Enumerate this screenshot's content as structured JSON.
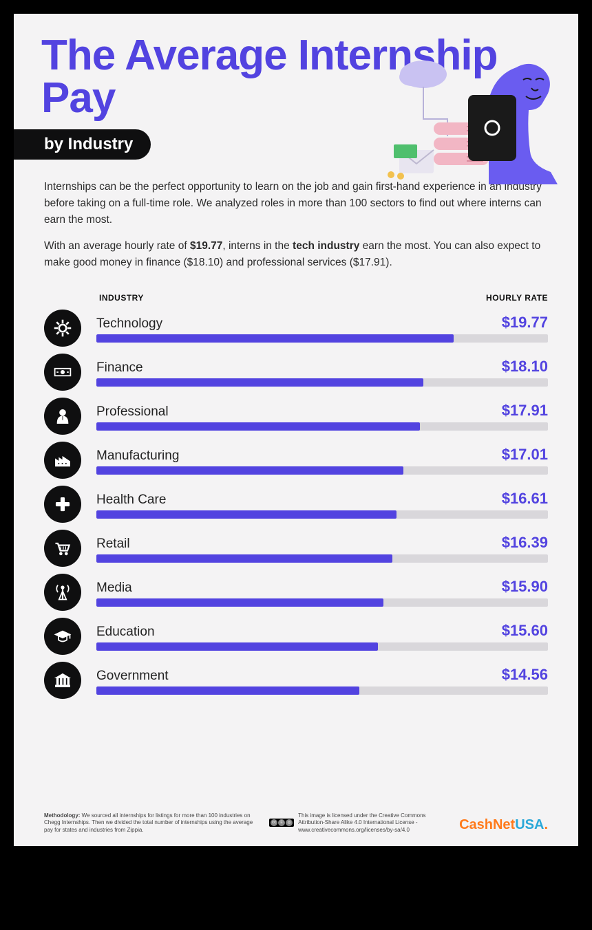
{
  "title": "The Average Internship Pay",
  "title_color": "#5243e0",
  "subtitle": "by Industry",
  "subtitle_pill_bg": "#0f0f10",
  "intro_p1": "Internships can be the perfect opportunity to learn on the job and gain first-hand experience in an industry before taking on a full-time role. We analyzed roles in more than 100 sectors to find out where interns can earn the most.",
  "intro_p2_a": "With an average hourly rate of ",
  "intro_p2_b1": "$19.77",
  "intro_p2_c": ", interns in the ",
  "intro_p2_b2": "tech industry",
  "intro_p2_d": " earn the most. You can also expect to make good money in finance ($18.10) and professional services ($17.91).",
  "headers": {
    "industry": "INDUSTRY",
    "rate": "HOURLY RATE"
  },
  "chart": {
    "type": "bar",
    "bar_color": "#5243e0",
    "track_color": "#d9d7db",
    "rate_color": "#5243e0",
    "icon_bg": "#0f0f10",
    "icon_fg": "#ffffff",
    "max_value": 25.0,
    "rows": [
      {
        "name": "Technology",
        "rate": "$19.77",
        "value": 19.77,
        "icon": "gear"
      },
      {
        "name": "Finance",
        "rate": "$18.10",
        "value": 18.1,
        "icon": "bill"
      },
      {
        "name": "Professional",
        "rate": "$17.91",
        "value": 17.91,
        "icon": "person"
      },
      {
        "name": "Manufacturing",
        "rate": "$17.01",
        "value": 17.01,
        "icon": "factory"
      },
      {
        "name": "Health Care",
        "rate": "$16.61",
        "value": 16.61,
        "icon": "plus"
      },
      {
        "name": "Retail",
        "rate": "$16.39",
        "value": 16.39,
        "icon": "cart"
      },
      {
        "name": "Media",
        "rate": "$15.90",
        "value": 15.9,
        "icon": "antenna"
      },
      {
        "name": "Education",
        "rate": "$15.60",
        "value": 15.6,
        "icon": "cap"
      },
      {
        "name": "Government",
        "rate": "$14.56",
        "value": 14.56,
        "icon": "bank"
      }
    ]
  },
  "footer": {
    "methodology_label": "Methodology:",
    "methodology_text": " We sourced all internships for listings for more than 100 industries on Chegg Internships. Then we divided the total number of internships using the average pay for states and industries from Zippia.",
    "license_text": "This image is licensed under the Creative Commons Attribution-Share Alike 4.0 International License - www.creativecommons.org/licenses/by-sa/4.0",
    "brand_a": "Cash",
    "brand_b": "Net",
    "brand_c": "USA",
    "brand_dot": ".",
    "brand_a_color": "#ff7a1a",
    "brand_b_color": "#ff7a1a",
    "brand_c_color": "#2aa8d8",
    "brand_dot_color": "#ff7a1a"
  },
  "illustration_colors": {
    "person": "#6a5cf0",
    "person_dark": "#3b2fb0",
    "tablet": "#1a1a1a",
    "tablet_btn": "#ffffff",
    "server": "#f2b6c4",
    "server_line": "#d88a9c",
    "cloud": "#c9c2f2",
    "envelope": "#e8e5f0",
    "money": "#4fbf6d",
    "coin": "#f2c14e",
    "wire": "#b7b2d9"
  }
}
